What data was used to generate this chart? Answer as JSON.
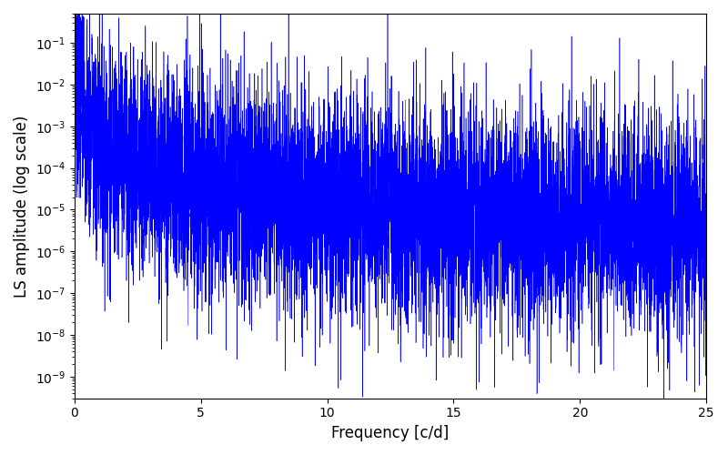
{
  "xlabel": "Frequency [c/d]",
  "ylabel": "LS amplitude (log scale)",
  "xlim": [
    0,
    25
  ],
  "ylim_log": [
    3e-10,
    0.5
  ],
  "line_color": "#0000ff",
  "linewidth": 0.4,
  "freq_max": 25.0,
  "n_points": 8000,
  "seed": 7,
  "background_color": "#ffffff",
  "figsize": [
    8.0,
    5.0
  ],
  "dpi": 100
}
